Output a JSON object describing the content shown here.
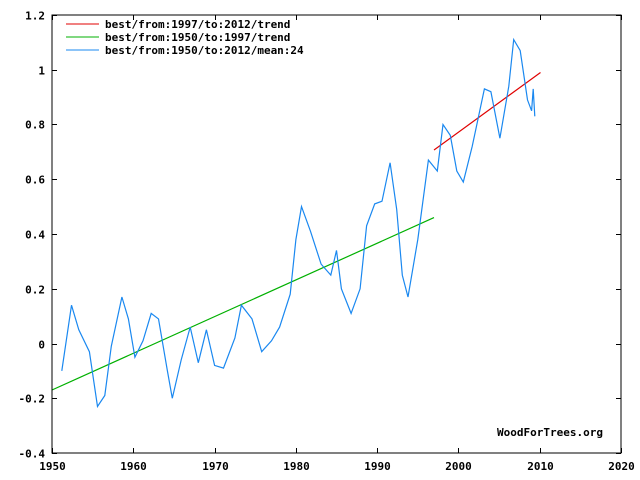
{
  "chart_data": {
    "type": "line",
    "title": "",
    "xlabel": "",
    "ylabel": "",
    "xlim": [
      1950,
      2020
    ],
    "ylim": [
      -0.4,
      1.2
    ],
    "x_ticks": [
      "1950",
      "1960",
      "1970",
      "1980",
      "1990",
      "2000",
      "2010",
      "2020"
    ],
    "y_ticks": [
      "-0.4",
      "-0.2",
      "0",
      "0.2",
      "0.4",
      "0.6",
      "0.8",
      "1",
      "1.2"
    ],
    "x_tick_values": [
      1950,
      1960,
      1970,
      1980,
      1990,
      2000,
      2010,
      2020
    ],
    "y_tick_values": [
      -0.4,
      -0.2,
      0,
      0.2,
      0.4,
      0.6,
      0.8,
      1.0,
      1.2
    ],
    "grid": false,
    "legend_position": "top-left",
    "watermark": "WoodForTrees.org",
    "series": [
      {
        "name": "best/from:1997/to:2012/trend",
        "color": "#e00000",
        "x": [
          1997.0,
          2010.1
        ],
        "y": [
          0.707,
          0.99
        ]
      },
      {
        "name": "best/from:1950/to:1997/trend",
        "color": "#00b000",
        "x": [
          1950.0,
          1997.0
        ],
        "y": [
          -0.17,
          0.46
        ]
      },
      {
        "name": "best/from:1950/to:2012/mean:24",
        "color": "#1a88f0",
        "x": [
          1951.2,
          1952.4,
          1953.3,
          1954.6,
          1955.6,
          1956.5,
          1957.3,
          1958.6,
          1959.4,
          1960.2,
          1961.2,
          1962.2,
          1963.1,
          1964.2,
          1964.8,
          1965.9,
          1967.0,
          1968.0,
          1969.0,
          1970.0,
          1971.1,
          1972.5,
          1973.3,
          1974.6,
          1975.8,
          1977.0,
          1978.0,
          1979.3,
          1980.0,
          1980.7,
          1981.8,
          1983.1,
          1984.3,
          1985.0,
          1985.6,
          1986.8,
          1987.9,
          1988.7,
          1989.7,
          1990.6,
          1991.6,
          1992.4,
          1993.1,
          1993.8,
          1995.0,
          1996.3,
          1997.4,
          1998.1,
          1999.0,
          1999.8,
          2000.6,
          2001.7,
          2003.2,
          2004.0,
          2005.1,
          2006.2,
          2006.8,
          2007.6,
          2008.5,
          2009.0,
          2009.2,
          2009.4
        ],
        "y": [
          -0.1,
          0.14,
          0.05,
          -0.03,
          -0.23,
          -0.19,
          -0.01,
          0.17,
          0.09,
          -0.05,
          0.01,
          0.11,
          0.09,
          -0.1,
          -0.2,
          -0.06,
          0.06,
          -0.07,
          0.05,
          -0.08,
          -0.09,
          0.02,
          0.14,
          0.09,
          -0.03,
          0.01,
          0.06,
          0.18,
          0.38,
          0.5,
          0.41,
          0.29,
          0.25,
          0.34,
          0.2,
          0.11,
          0.2,
          0.43,
          0.51,
          0.52,
          0.66,
          0.49,
          0.25,
          0.17,
          0.38,
          0.67,
          0.63,
          0.8,
          0.76,
          0.63,
          0.59,
          0.72,
          0.93,
          0.92,
          0.75,
          0.94,
          1.11,
          1.07,
          0.89,
          0.85,
          0.93,
          0.83
        ]
      }
    ]
  }
}
